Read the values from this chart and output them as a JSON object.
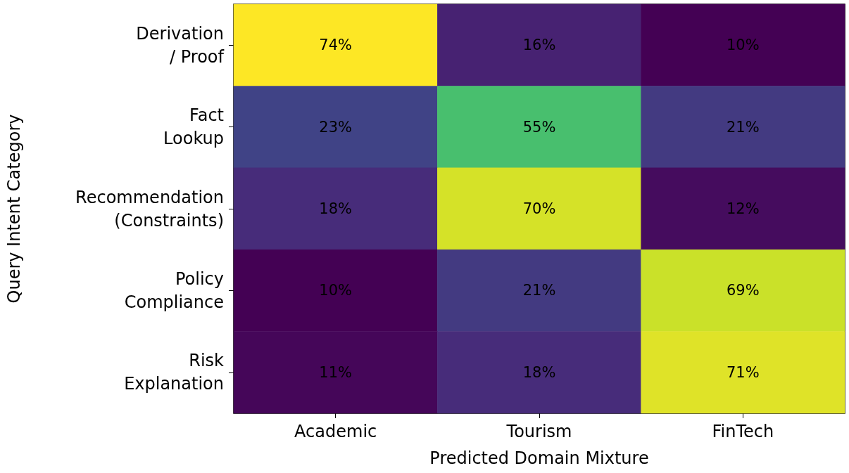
{
  "chart_data": {
    "type": "heatmap",
    "xlabel": "Predicted Domain Mixture",
    "ylabel": "Query Intent Category",
    "categories": [
      "Academic",
      "Tourism",
      "FinTech"
    ],
    "y_categories": [
      "Derivation / Proof",
      "Fact Lookup",
      "Recommendation (Constraints)",
      "Policy Compliance",
      "Risk Explanation"
    ],
    "cells": [
      [
        74,
        16,
        10
      ],
      [
        23,
        55,
        21
      ],
      [
        18,
        70,
        12
      ],
      [
        10,
        21,
        69
      ],
      [
        11,
        18,
        71
      ]
    ],
    "cell_labels": [
      [
        "74%",
        "16%",
        "10%"
      ],
      [
        "23%",
        "55%",
        "21%"
      ],
      [
        "18%",
        "70%",
        "12%"
      ],
      [
        "10%",
        "21%",
        "69%"
      ],
      [
        "11%",
        "18%",
        "71%"
      ]
    ],
    "colors": [
      "#440154",
      "#482878",
      "#3e4989",
      "#31688e",
      "#26828e",
      "#1f9e89",
      "#35b779",
      "#6ece58",
      "#b5de2b",
      "#fde725"
    ]
  }
}
